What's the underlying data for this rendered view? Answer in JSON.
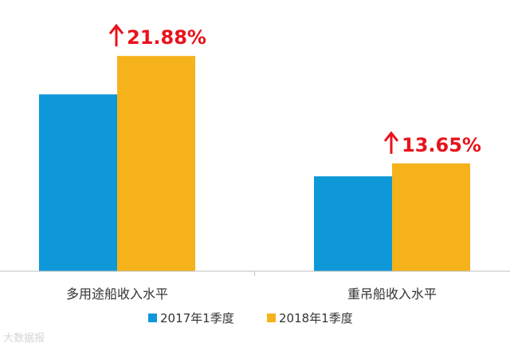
{
  "chart_data": {
    "type": "bar",
    "categories": [
      "多用途船收入水平",
      "重吊船收入水平"
    ],
    "series": [
      {
        "name": "2017年1季度",
        "color": "#0f98d8",
        "values": [
          8.2,
          4.4
        ]
      },
      {
        "name": "2018年1季度",
        "color": "#f6b21a",
        "values": [
          9.98,
          5.0
        ]
      }
    ],
    "annotations": [
      {
        "category_index": 0,
        "text": "21.88%",
        "arrow": "up-arrow-icon"
      },
      {
        "category_index": 1,
        "text": "13.65%",
        "arrow": "up-arrow-icon"
      }
    ],
    "annotation_color": "#e8131b",
    "ylim": [
      0,
      10.8
    ],
    "grid": false,
    "yaxis_visible": false,
    "legend_position": "bottom-center",
    "title": "",
    "xlabel": "",
    "ylabel": ""
  },
  "watermark_text": "大数据报"
}
